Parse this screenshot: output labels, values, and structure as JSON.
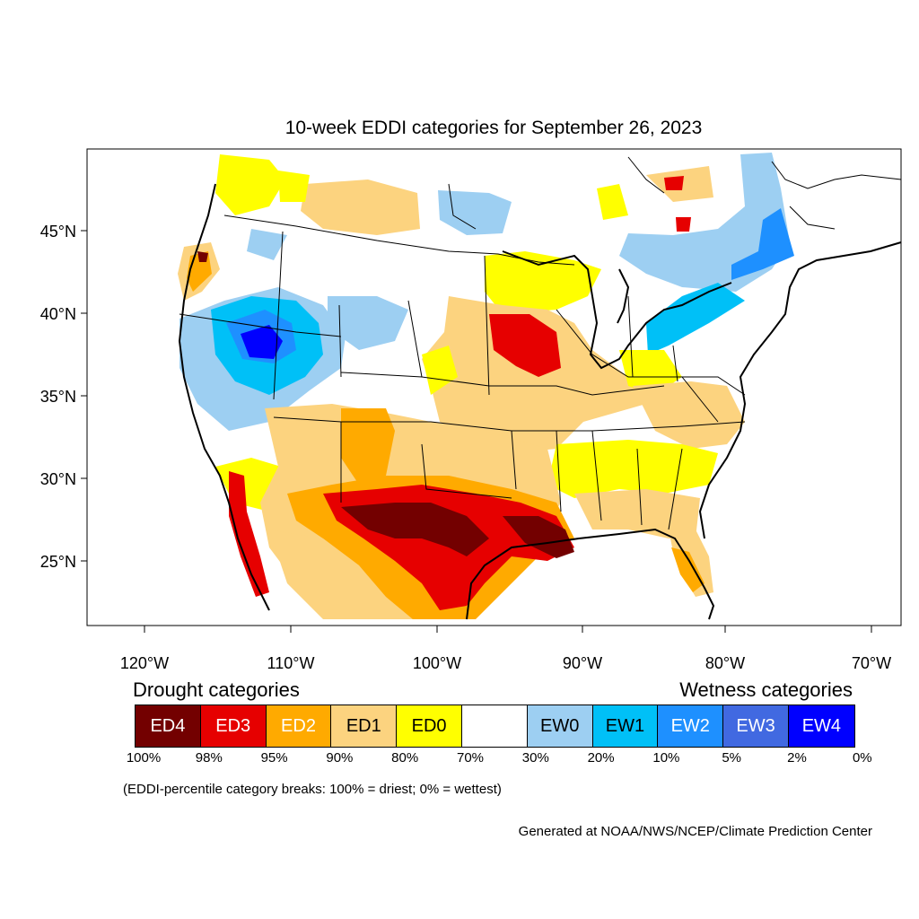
{
  "title": "10-week EDDI categories for September 26, 2023",
  "lat_labels": [
    "45°N",
    "40°N",
    "35°N",
    "30°N",
    "25°N"
  ],
  "lon_labels": [
    "120°W",
    "110°W",
    "100°W",
    "90°W",
    "80°W",
    "70°W"
  ],
  "legend": {
    "drought_heading": "Drought categories",
    "wetness_heading": "Wetness categories",
    "categories": [
      {
        "label": "ED4",
        "color": "#730000",
        "text_color": "#ffffff"
      },
      {
        "label": "ED3",
        "color": "#e60000",
        "text_color": "#ffffff"
      },
      {
        "label": "ED2",
        "color": "#ffaa00",
        "text_color": "#ffffff"
      },
      {
        "label": "ED1",
        "color": "#fcd37f",
        "text_color": "#000000"
      },
      {
        "label": "ED0",
        "color": "#ffff00",
        "text_color": "#000000"
      },
      {
        "label": "",
        "color": "#ffffff",
        "text_color": "#000000"
      },
      {
        "label": "EW0",
        "color": "#9dcff2",
        "text_color": "#000000"
      },
      {
        "label": "EW1",
        "color": "#00c0f7",
        "text_color": "#000000"
      },
      {
        "label": "EW2",
        "color": "#1e90ff",
        "text_color": "#ffffff"
      },
      {
        "label": "EW3",
        "color": "#4169e1",
        "text_color": "#ffffff"
      },
      {
        "label": "EW4",
        "color": "#0000ff",
        "text_color": "#ffffff"
      }
    ],
    "percentiles": [
      "100%",
      "98%",
      "95%",
      "90%",
      "80%",
      "70%",
      "30%",
      "20%",
      "10%",
      "5%",
      "2%",
      "0%"
    ]
  },
  "note": "(EDDI-percentile category breaks: 100% = driest; 0% = wettest)",
  "credit": "Generated at NOAA/NWS/NCEP/Climate Prediction Center"
}
